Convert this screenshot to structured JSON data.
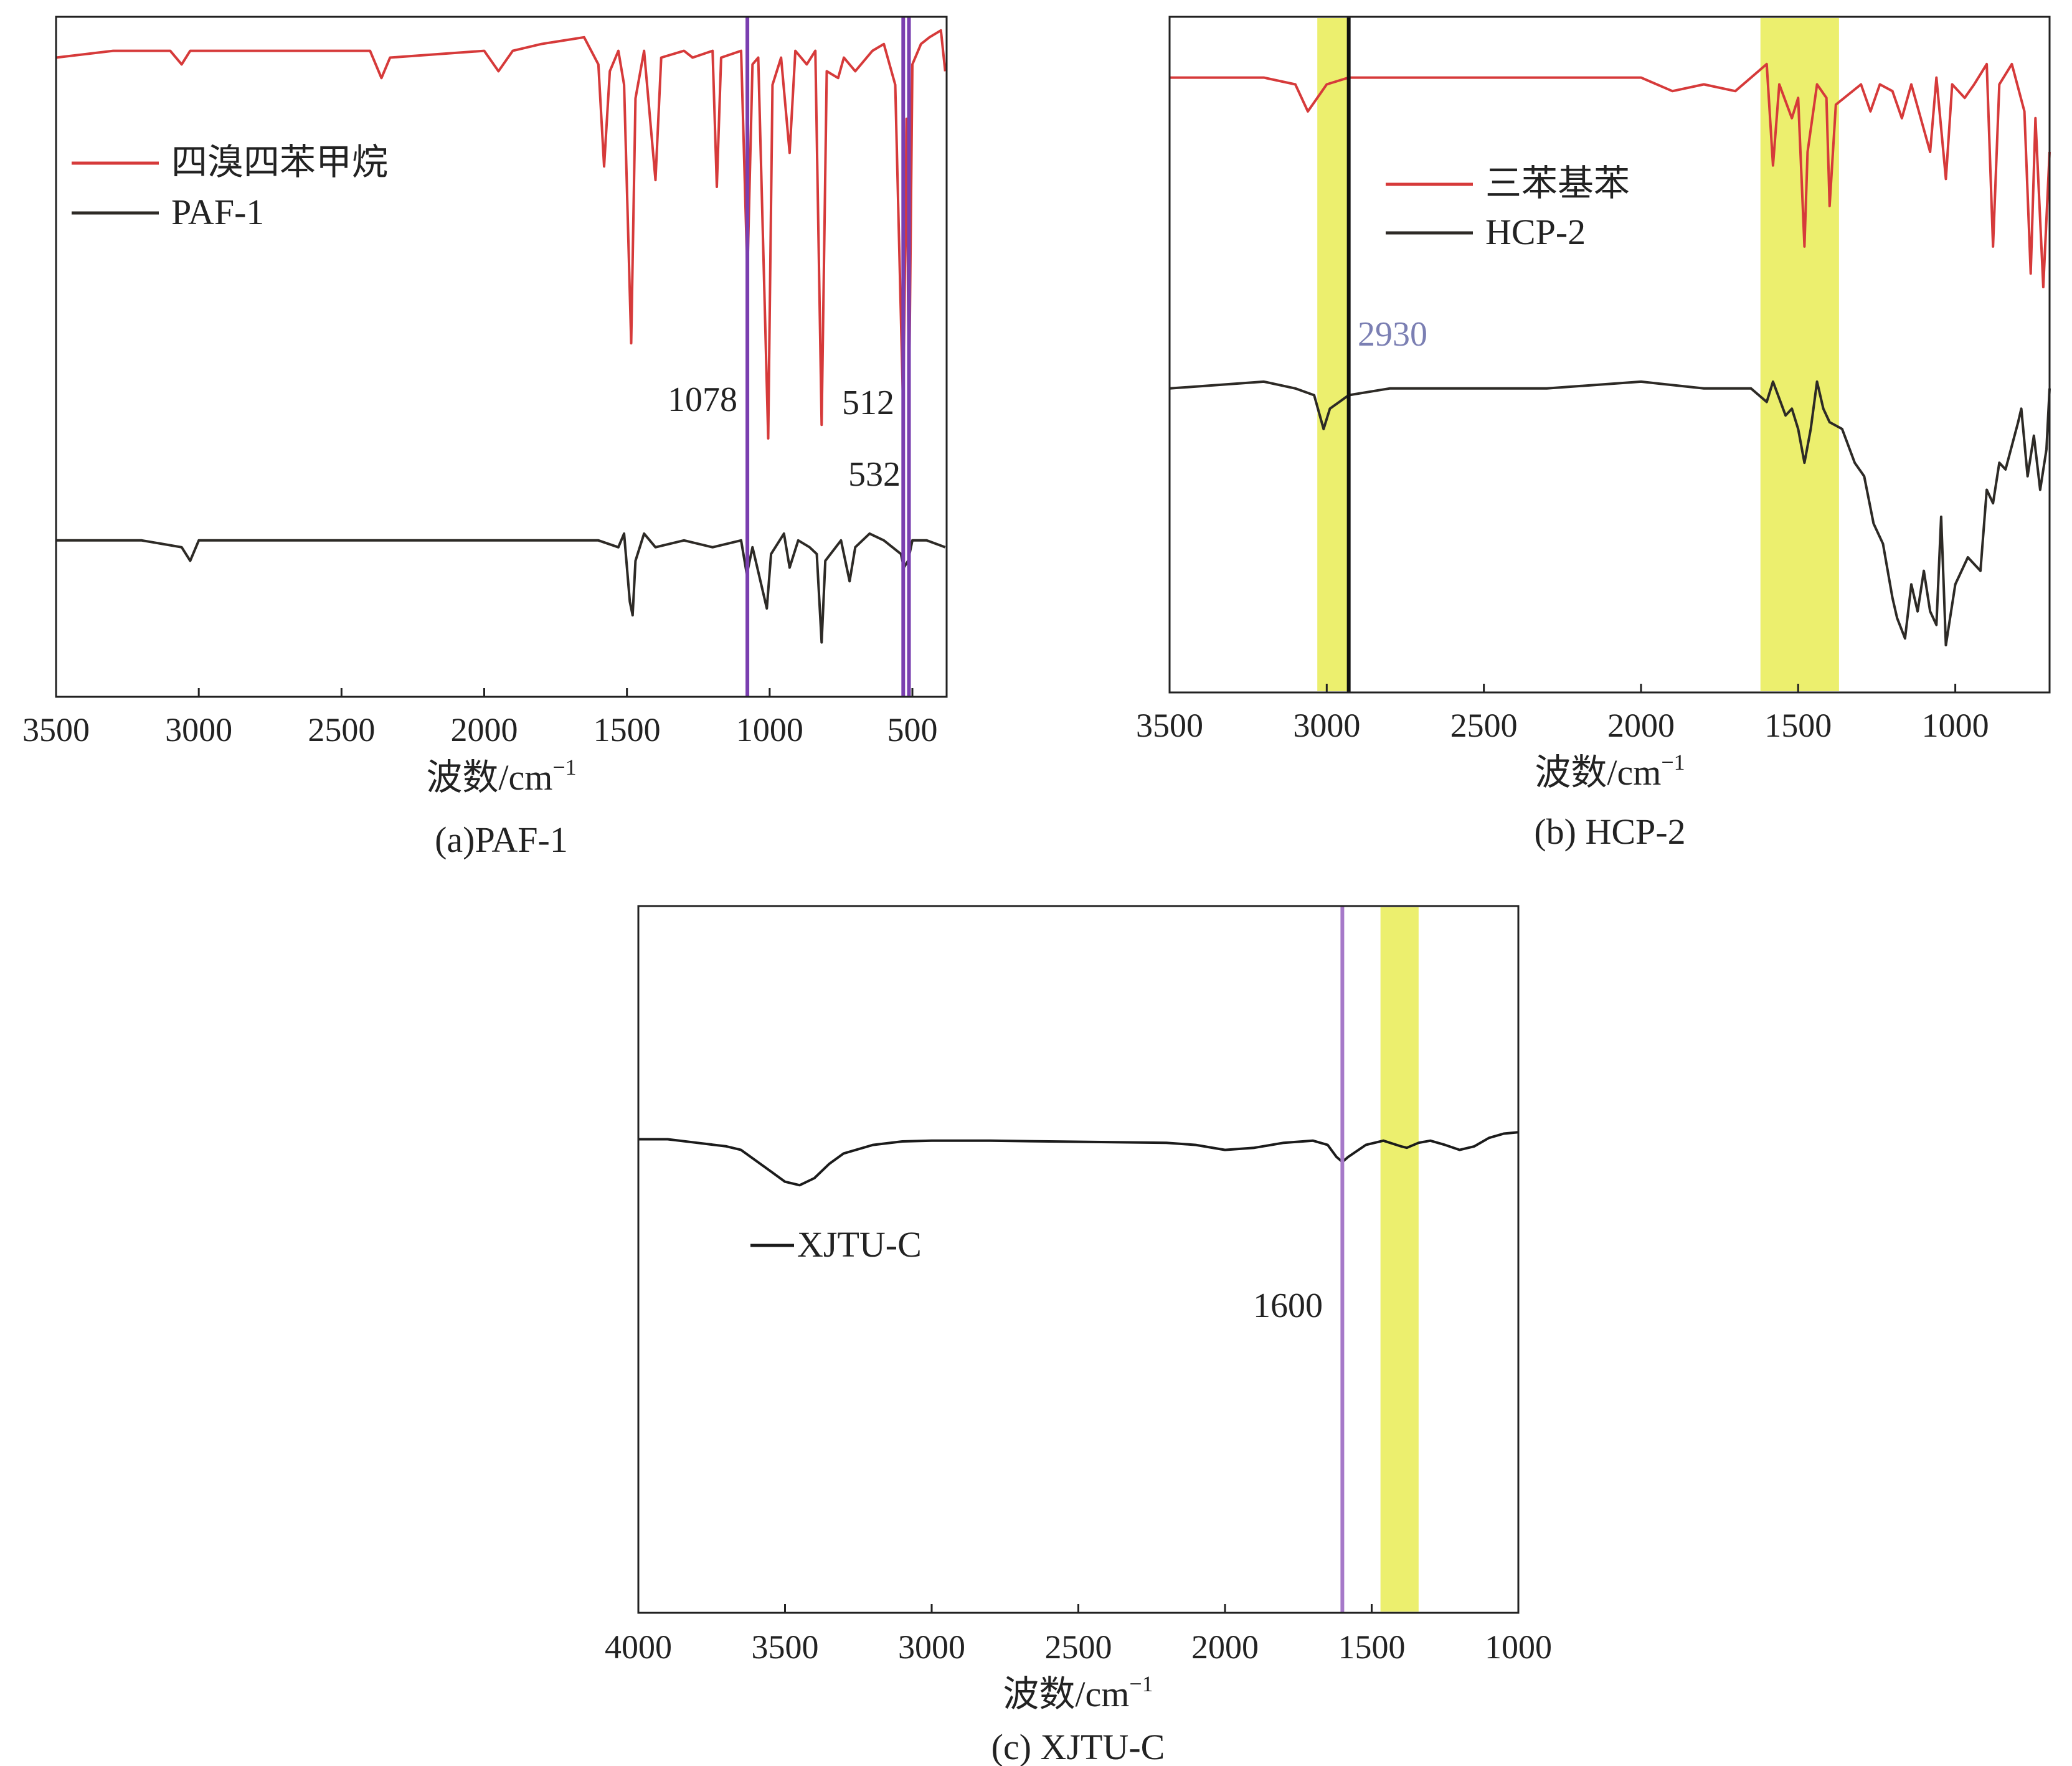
{
  "chart_data": [
    {
      "id": "a",
      "type": "line",
      "caption": "(a)PAF-1",
      "xlabel": "波数/cm",
      "xlabel_sup": "−1",
      "ylabel": "",
      "xlim": [
        3500,
        380
      ],
      "x_reversed": true,
      "xticks": [
        3500,
        3000,
        2500,
        2000,
        1500,
        1000,
        500
      ],
      "xtick_labels": [
        "3500",
        "3000",
        "2500",
        "2000",
        "1500",
        "1000",
        "500"
      ],
      "yticks": "none",
      "grid": false,
      "legend_position": "upper-left",
      "series": [
        {
          "name": "四溴四苯甲烷",
          "color": "#d63a3a",
          "points": [
            [
              3500,
              0.94
            ],
            [
              3300,
              0.95
            ],
            [
              3100,
              0.95
            ],
            [
              3060,
              0.93
            ],
            [
              3030,
              0.95
            ],
            [
              2700,
              0.95
            ],
            [
              2400,
              0.95
            ],
            [
              2360,
              0.91
            ],
            [
              2330,
              0.94
            ],
            [
              2000,
              0.95
            ],
            [
              1950,
              0.92
            ],
            [
              1900,
              0.95
            ],
            [
              1800,
              0.96
            ],
            [
              1650,
              0.97
            ],
            [
              1600,
              0.93
            ],
            [
              1580,
              0.78
            ],
            [
              1560,
              0.92
            ],
            [
              1530,
              0.95
            ],
            [
              1510,
              0.9
            ],
            [
              1485,
              0.52
            ],
            [
              1470,
              0.88
            ],
            [
              1440,
              0.95
            ],
            [
              1400,
              0.76
            ],
            [
              1380,
              0.94
            ],
            [
              1300,
              0.95
            ],
            [
              1270,
              0.94
            ],
            [
              1200,
              0.95
            ],
            [
              1185,
              0.75
            ],
            [
              1170,
              0.94
            ],
            [
              1100,
              0.95
            ],
            [
              1078,
              0.62
            ],
            [
              1060,
              0.93
            ],
            [
              1040,
              0.94
            ],
            [
              1005,
              0.38
            ],
            [
              990,
              0.9
            ],
            [
              960,
              0.94
            ],
            [
              930,
              0.8
            ],
            [
              910,
              0.95
            ],
            [
              870,
              0.93
            ],
            [
              840,
              0.95
            ],
            [
              818,
              0.4
            ],
            [
              800,
              0.92
            ],
            [
              760,
              0.91
            ],
            [
              740,
              0.94
            ],
            [
              700,
              0.92
            ],
            [
              640,
              0.95
            ],
            [
              600,
              0.96
            ],
            [
              560,
              0.9
            ],
            [
              532,
              0.42
            ],
            [
              520,
              0.85
            ],
            [
              512,
              0.42
            ],
            [
              500,
              0.93
            ],
            [
              470,
              0.96
            ],
            [
              440,
              0.97
            ],
            [
              400,
              0.98
            ],
            [
              385,
              0.92
            ]
          ]
        },
        {
          "name": "PAF-1",
          "color": "#2d2a26",
          "points": [
            [
              3500,
              0.23
            ],
            [
              3200,
              0.23
            ],
            [
              3060,
              0.22
            ],
            [
              3030,
              0.2
            ],
            [
              3000,
              0.23
            ],
            [
              2500,
              0.23
            ],
            [
              2000,
              0.23
            ],
            [
              1800,
              0.23
            ],
            [
              1600,
              0.23
            ],
            [
              1530,
              0.22
            ],
            [
              1510,
              0.24
            ],
            [
              1490,
              0.14
            ],
            [
              1480,
              0.12
            ],
            [
              1470,
              0.2
            ],
            [
              1440,
              0.24
            ],
            [
              1400,
              0.22
            ],
            [
              1300,
              0.23
            ],
            [
              1200,
              0.22
            ],
            [
              1100,
              0.23
            ],
            [
              1080,
              0.18
            ],
            [
              1060,
              0.22
            ],
            [
              1010,
              0.13
            ],
            [
              995,
              0.21
            ],
            [
              950,
              0.24
            ],
            [
              930,
              0.19
            ],
            [
              900,
              0.23
            ],
            [
              860,
              0.22
            ],
            [
              835,
              0.21
            ],
            [
              818,
              0.08
            ],
            [
              805,
              0.2
            ],
            [
              750,
              0.23
            ],
            [
              720,
              0.17
            ],
            [
              700,
              0.22
            ],
            [
              650,
              0.24
            ],
            [
              600,
              0.23
            ],
            [
              540,
              0.21
            ],
            [
              530,
              0.19
            ],
            [
              515,
              0.2
            ],
            [
              500,
              0.23
            ],
            [
              450,
              0.23
            ],
            [
              385,
              0.22
            ]
          ]
        }
      ],
      "annotations": [
        {
          "text": "1078",
          "x": 1078,
          "line_color": "#7a3fb0"
        },
        {
          "text": "512",
          "x": 512,
          "line_color": "#7a3fb0"
        },
        {
          "text": "532",
          "x": 532,
          "line_color": "#7a3fb0"
        }
      ]
    },
    {
      "id": "b",
      "type": "line",
      "caption": "(b) HCP-2",
      "xlabel": "波数/cm",
      "xlabel_sup": "−1",
      "ylabel": "",
      "xlim": [
        3500,
        700
      ],
      "x_reversed": true,
      "xticks": [
        3500,
        3000,
        2500,
        2000,
        1500,
        1000
      ],
      "xtick_labels": [
        "3500",
        "3000",
        "2500",
        "2000",
        "1500",
        "1000"
      ],
      "yticks": "none",
      "grid": false,
      "legend_position": "upper-left",
      "series": [
        {
          "name": "三苯基苯",
          "color": "#d63a3a",
          "points": [
            [
              3500,
              0.91
            ],
            [
              3200,
              0.91
            ],
            [
              3100,
              0.9
            ],
            [
              3060,
              0.86
            ],
            [
              3030,
              0.88
            ],
            [
              3000,
              0.9
            ],
            [
              2930,
              0.91
            ],
            [
              2500,
              0.91
            ],
            [
              2000,
              0.91
            ],
            [
              1900,
              0.89
            ],
            [
              1800,
              0.9
            ],
            [
              1700,
              0.89
            ],
            [
              1650,
              0.91
            ],
            [
              1600,
              0.93
            ],
            [
              1580,
              0.78
            ],
            [
              1560,
              0.9
            ],
            [
              1520,
              0.85
            ],
            [
              1500,
              0.88
            ],
            [
              1480,
              0.66
            ],
            [
              1470,
              0.8
            ],
            [
              1440,
              0.9
            ],
            [
              1410,
              0.88
            ],
            [
              1400,
              0.72
            ],
            [
              1380,
              0.87
            ],
            [
              1300,
              0.9
            ],
            [
              1270,
              0.86
            ],
            [
              1240,
              0.9
            ],
            [
              1200,
              0.89
            ],
            [
              1170,
              0.85
            ],
            [
              1140,
              0.9
            ],
            [
              1080,
              0.8
            ],
            [
              1060,
              0.91
            ],
            [
              1030,
              0.76
            ],
            [
              1010,
              0.9
            ],
            [
              970,
              0.88
            ],
            [
              940,
              0.9
            ],
            [
              900,
              0.93
            ],
            [
              880,
              0.66
            ],
            [
              860,
              0.9
            ],
            [
              820,
              0.93
            ],
            [
              780,
              0.86
            ],
            [
              760,
              0.62
            ],
            [
              745,
              0.85
            ],
            [
              720,
              0.6
            ],
            [
              700,
              0.8
            ]
          ]
        },
        {
          "name": "HCP-2",
          "color": "#2d2a26",
          "points": [
            [
              3500,
              0.45
            ],
            [
              3200,
              0.46
            ],
            [
              3100,
              0.45
            ],
            [
              3040,
              0.44
            ],
            [
              3010,
              0.39
            ],
            [
              2990,
              0.42
            ],
            [
              2960,
              0.43
            ],
            [
              2930,
              0.44
            ],
            [
              2800,
              0.45
            ],
            [
              2500,
              0.45
            ],
            [
              2300,
              0.45
            ],
            [
              2000,
              0.46
            ],
            [
              1800,
              0.45
            ],
            [
              1650,
              0.45
            ],
            [
              1600,
              0.43
            ],
            [
              1580,
              0.46
            ],
            [
              1540,
              0.41
            ],
            [
              1520,
              0.42
            ],
            [
              1500,
              0.39
            ],
            [
              1480,
              0.34
            ],
            [
              1460,
              0.39
            ],
            [
              1440,
              0.46
            ],
            [
              1420,
              0.42
            ],
            [
              1400,
              0.4
            ],
            [
              1360,
              0.39
            ],
            [
              1320,
              0.34
            ],
            [
              1290,
              0.32
            ],
            [
              1260,
              0.25
            ],
            [
              1230,
              0.22
            ],
            [
              1200,
              0.14
            ],
            [
              1185,
              0.11
            ],
            [
              1160,
              0.08
            ],
            [
              1140,
              0.16
            ],
            [
              1120,
              0.12
            ],
            [
              1100,
              0.18
            ],
            [
              1080,
              0.12
            ],
            [
              1060,
              0.1
            ],
            [
              1045,
              0.26
            ],
            [
              1030,
              0.07
            ],
            [
              1020,
              0.1
            ],
            [
              1000,
              0.16
            ],
            [
              960,
              0.2
            ],
            [
              940,
              0.19
            ],
            [
              920,
              0.18
            ],
            [
              900,
              0.3
            ],
            [
              880,
              0.28
            ],
            [
              860,
              0.34
            ],
            [
              840,
              0.33
            ],
            [
              800,
              0.4
            ],
            [
              790,
              0.42
            ],
            [
              770,
              0.32
            ],
            [
              750,
              0.38
            ],
            [
              730,
              0.3
            ],
            [
              710,
              0.36
            ],
            [
              700,
              0.45
            ]
          ]
        }
      ],
      "annotations": [
        {
          "text": "2930",
          "x": 2930,
          "line_color": "#111111"
        }
      ],
      "highlight_bands": [
        {
          "from": 3030,
          "to": 2930,
          "color": "#e9ec55"
        },
        {
          "from": 1620,
          "to": 1370,
          "color": "#e9ec55"
        }
      ]
    },
    {
      "id": "c",
      "type": "line",
      "caption": "(c) XJTU-C",
      "xlabel": "波数/cm",
      "xlabel_sup": "−1",
      "ylabel": "",
      "xlim": [
        4000,
        1000
      ],
      "x_reversed": true,
      "xticks": [
        4000,
        3500,
        3000,
        2500,
        2000,
        1500,
        1000
      ],
      "xtick_labels": [
        "4000",
        "3500",
        "3000",
        "2500",
        "2000",
        "1500",
        "1000"
      ],
      "yticks": "none",
      "grid": false,
      "legend_position": "center-left",
      "series": [
        {
          "name": "XJTU-C",
          "color": "#1b1b1b",
          "points": [
            [
              4000,
              0.67
            ],
            [
              3900,
              0.67
            ],
            [
              3800,
              0.665
            ],
            [
              3700,
              0.66
            ],
            [
              3650,
              0.655
            ],
            [
              3600,
              0.64
            ],
            [
              3550,
              0.625
            ],
            [
              3500,
              0.61
            ],
            [
              3450,
              0.605
            ],
            [
              3400,
              0.615
            ],
            [
              3350,
              0.635
            ],
            [
              3300,
              0.65
            ],
            [
              3200,
              0.662
            ],
            [
              3100,
              0.667
            ],
            [
              3000,
              0.668
            ],
            [
              2800,
              0.668
            ],
            [
              2600,
              0.667
            ],
            [
              2400,
              0.666
            ],
            [
              2200,
              0.665
            ],
            [
              2100,
              0.662
            ],
            [
              2000,
              0.655
            ],
            [
              1900,
              0.658
            ],
            [
              1800,
              0.665
            ],
            [
              1700,
              0.668
            ],
            [
              1650,
              0.662
            ],
            [
              1620,
              0.645
            ],
            [
              1600,
              0.638
            ],
            [
              1580,
              0.645
            ],
            [
              1520,
              0.662
            ],
            [
              1460,
              0.668
            ],
            [
              1400,
              0.66
            ],
            [
              1380,
              0.658
            ],
            [
              1340,
              0.665
            ],
            [
              1300,
              0.668
            ],
            [
              1250,
              0.662
            ],
            [
              1200,
              0.655
            ],
            [
              1150,
              0.66
            ],
            [
              1100,
              0.672
            ],
            [
              1050,
              0.678
            ],
            [
              1000,
              0.68
            ]
          ]
        }
      ],
      "annotations": [
        {
          "text": "1600",
          "x": 1600,
          "line_color": "#a679c9"
        }
      ],
      "highlight_bands": [
        {
          "from": 1470,
          "to": 1340,
          "color": "#e9ec55"
        }
      ]
    }
  ]
}
